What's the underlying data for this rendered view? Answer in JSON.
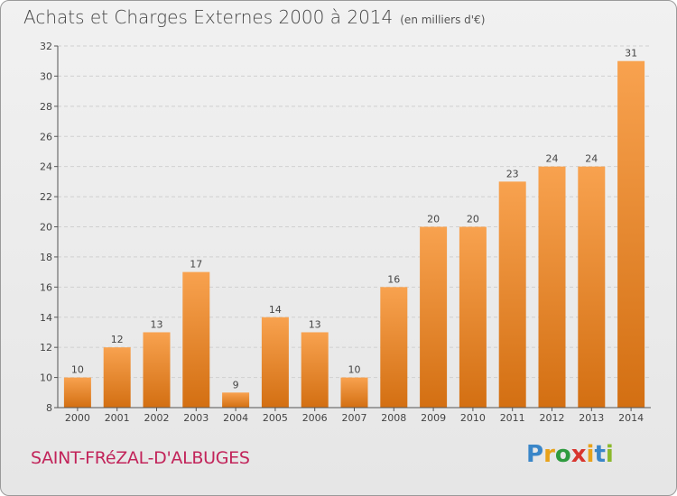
{
  "header": {
    "title": "Achats et Charges Externes 2000 à 2014",
    "unit": "(en milliers d'€)"
  },
  "footer": {
    "place": "SAINT-FRéZAL-D'ALBUGES",
    "logo_letters": [
      "P",
      "r",
      "o",
      "x",
      "i",
      "t",
      "i"
    ],
    "logo_colors": [
      "#3a86c8",
      "#e8a21a",
      "#2f9b3f",
      "#d8352e",
      "#e8a21a",
      "#3a86c8",
      "#8bb82c"
    ]
  },
  "colors": {
    "bar_top": "#f8a24f",
    "bar_bottom": "#d36f12",
    "grid": "#d0d0d0",
    "axis": "#555555"
  },
  "chart_data": {
    "type": "bar",
    "title": "Achats et Charges Externes 2000 à 2014",
    "subtitle": "(en milliers d'€)",
    "categories": [
      "2000",
      "2001",
      "2002",
      "2003",
      "2004",
      "2005",
      "2006",
      "2007",
      "2008",
      "2009",
      "2010",
      "2011",
      "2012",
      "2013",
      "2014"
    ],
    "values": [
      10,
      12,
      13,
      17,
      9,
      14,
      13,
      10,
      16,
      20,
      20,
      23,
      24,
      24,
      31
    ],
    "ylim": [
      8,
      32
    ],
    "yticks": [
      8,
      10,
      12,
      14,
      16,
      18,
      20,
      22,
      24,
      26,
      28,
      30,
      32
    ],
    "grid": true,
    "data_labels": true
  }
}
